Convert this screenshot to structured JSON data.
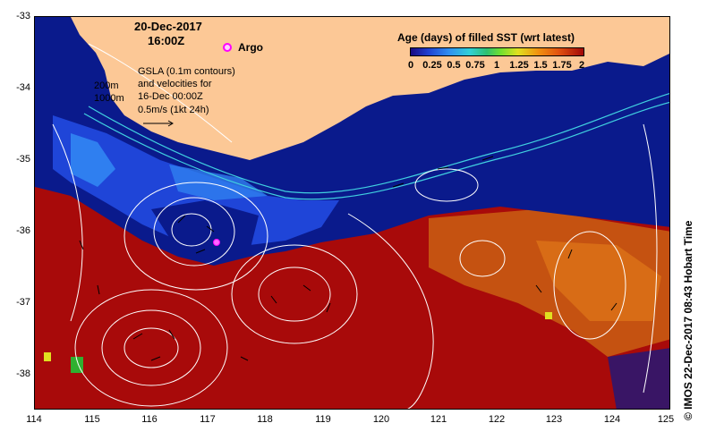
{
  "header": {
    "date": "20-Dec-2017",
    "time": "16:00Z"
  },
  "argo": {
    "label": "Argo",
    "marker_color": "#ff00ff"
  },
  "gsla_note": {
    "lines": [
      "GSLA (0.1m contours)",
      "and velocities for",
      "16-Dec 00:00Z",
      "0.5m/s (1kt 24h)"
    ]
  },
  "isobaths": {
    "shallow": "200m",
    "deep": "1000m"
  },
  "colorbar": {
    "title": "Age (days) of filled SST (wrt latest)",
    "ticks": [
      "0",
      "0.25",
      "0.5",
      "0.75",
      "1",
      "1.25",
      "1.5",
      "1.75",
      "2"
    ]
  },
  "axes": {
    "y_ticks": [
      "-33",
      "-34",
      "-35",
      "-36",
      "-37",
      "-38"
    ],
    "x_ticks": [
      "114",
      "115",
      "116",
      "117",
      "118",
      "119",
      "120",
      "121",
      "122",
      "123",
      "124",
      "125"
    ],
    "lon_range": [
      114,
      125
    ],
    "lat_range": [
      -38.5,
      -33
    ]
  },
  "credit": "© IMOS 22-Dec-2017 08:43 Hobart Time",
  "colors": {
    "land": "#fcc896",
    "deep_blue": "#0a1a8c",
    "mid_blue": "#1f3fd0",
    "light_blue": "#2f7ff0",
    "dark_red": "#a80a0a",
    "orange": "#d86010",
    "contour": "#ffffff",
    "isobath": "#40d0e0"
  }
}
